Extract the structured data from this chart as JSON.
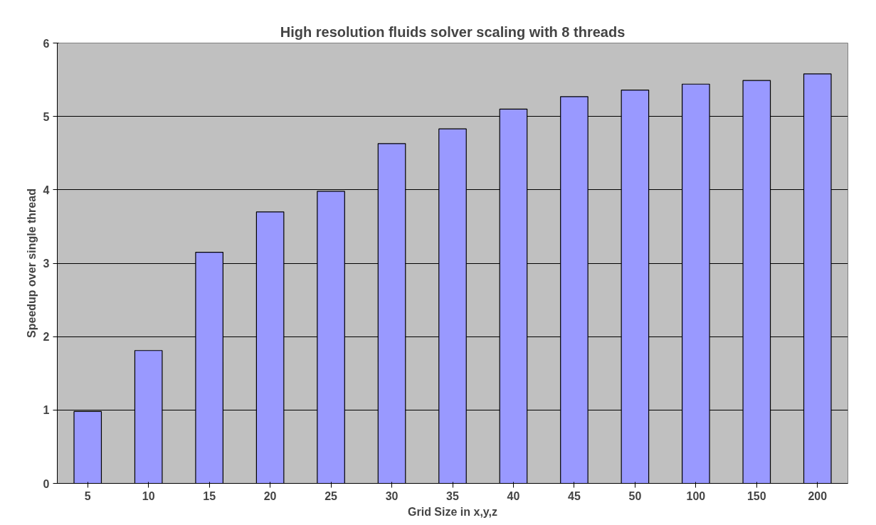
{
  "chart_data": {
    "type": "bar",
    "title": "High resolution fluids solver scaling with 8 threads",
    "xlabel": "Grid Size in x,y,z",
    "ylabel": "Speedup over single thread",
    "categories": [
      "5",
      "10",
      "15",
      "20",
      "25",
      "30",
      "35",
      "40",
      "45",
      "50",
      "100",
      "150",
      "200"
    ],
    "values": [
      0.98,
      1.81,
      3.15,
      3.7,
      3.98,
      4.63,
      4.83,
      5.1,
      5.27,
      5.36,
      5.44,
      5.49,
      5.58
    ],
    "color": "#9999ff",
    "ylim": [
      0,
      6
    ],
    "yticks": [
      0,
      1,
      2,
      3,
      4,
      5,
      6
    ],
    "grid": "y"
  }
}
